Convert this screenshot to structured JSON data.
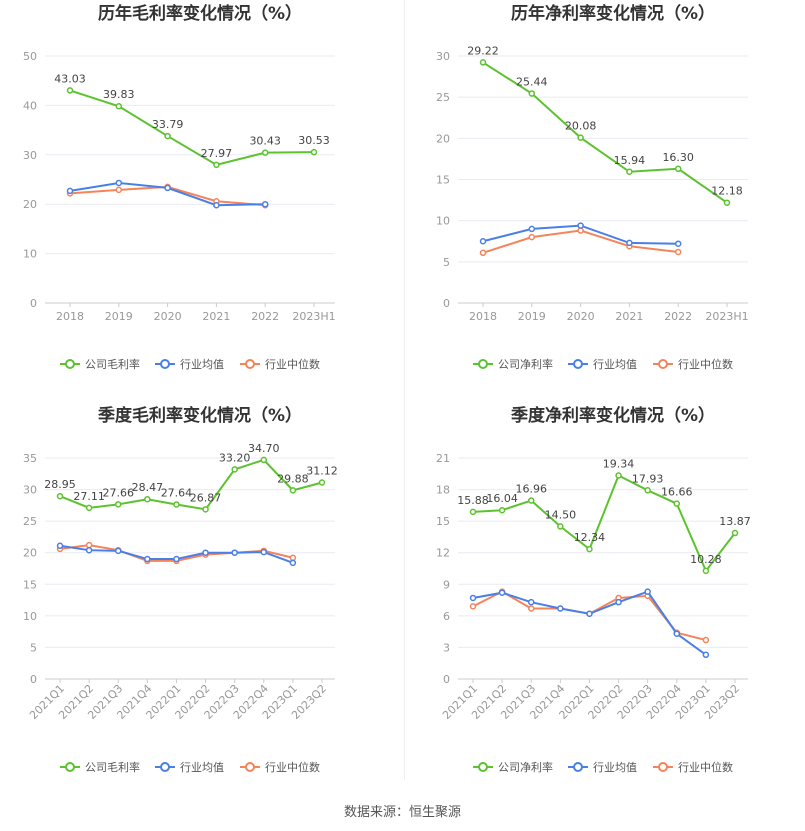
{
  "footer": "数据来源：恒生聚源",
  "colors": {
    "company": "#5cc22f",
    "avg": "#4a7fe8",
    "median": "#f5845a",
    "grid": "#e8ebf2",
    "axis": "#999999"
  },
  "chart_data": [
    {
      "type": "line",
      "title": "历年毛利率变化情况（%）",
      "categories": [
        "2018",
        "2019",
        "2020",
        "2021",
        "2022",
        "2023H1"
      ],
      "ylim": [
        0,
        50
      ],
      "yticks": [
        0,
        10,
        20,
        30,
        40,
        50
      ],
      "rotate": false,
      "series": [
        {
          "name": "公司毛利率",
          "key": "company",
          "values": [
            43.03,
            39.83,
            33.79,
            27.97,
            30.43,
            30.53
          ],
          "labels": true
        },
        {
          "name": "行业均值",
          "key": "avg",
          "values": [
            22.7,
            24.3,
            23.3,
            19.8,
            20.0,
            null
          ]
        },
        {
          "name": "行业中位数",
          "key": "median",
          "values": [
            22.2,
            22.9,
            23.5,
            20.6,
            19.8,
            null
          ]
        }
      ]
    },
    {
      "type": "line",
      "title": "历年净利率变化情况（%）",
      "categories": [
        "2018",
        "2019",
        "2020",
        "2021",
        "2022",
        "2023H1"
      ],
      "ylim": [
        0,
        30
      ],
      "yticks": [
        0,
        5,
        10,
        15,
        20,
        25,
        30
      ],
      "rotate": false,
      "series": [
        {
          "name": "公司净利率",
          "key": "company",
          "values": [
            29.22,
            25.44,
            20.08,
            15.94,
            16.3,
            12.18
          ],
          "labels": true
        },
        {
          "name": "行业均值",
          "key": "avg",
          "values": [
            7.5,
            9.0,
            9.4,
            7.3,
            7.2,
            null
          ]
        },
        {
          "name": "行业中位数",
          "key": "median",
          "values": [
            6.1,
            8.0,
            8.8,
            6.9,
            6.2,
            null
          ]
        }
      ]
    },
    {
      "type": "line",
      "title": "季度毛利率变化情况（%）",
      "categories": [
        "2021Q1",
        "2021Q2",
        "2021Q3",
        "2021Q4",
        "2022Q1",
        "2022Q2",
        "2022Q3",
        "2022Q4",
        "2023Q1",
        "2023Q2"
      ],
      "ylim": [
        0,
        35
      ],
      "yticks": [
        0,
        5,
        10,
        15,
        20,
        25,
        30,
        35
      ],
      "rotate": true,
      "series": [
        {
          "name": "公司毛利率",
          "key": "company",
          "values": [
            28.95,
            27.11,
            27.66,
            28.47,
            27.64,
            26.87,
            33.2,
            34.7,
            29.88,
            31.12
          ],
          "labels": true
        },
        {
          "name": "行业均值",
          "key": "avg",
          "values": [
            21.1,
            20.4,
            20.3,
            19.0,
            19.0,
            20.0,
            20.0,
            20.1,
            18.4,
            null
          ]
        },
        {
          "name": "行业中位数",
          "key": "median",
          "values": [
            20.6,
            21.2,
            20.4,
            18.7,
            18.7,
            19.7,
            20.0,
            20.3,
            19.2,
            null
          ]
        }
      ]
    },
    {
      "type": "line",
      "title": "季度净利率变化情况（%）",
      "categories": [
        "2021Q1",
        "2021Q2",
        "2021Q3",
        "2021Q4",
        "2022Q1",
        "2022Q2",
        "2022Q3",
        "2022Q4",
        "2023Q1",
        "2023Q2"
      ],
      "ylim": [
        0,
        21
      ],
      "yticks": [
        0,
        3,
        6,
        9,
        12,
        15,
        18,
        21
      ],
      "rotate": true,
      "series": [
        {
          "name": "公司净利率",
          "key": "company",
          "values": [
            15.88,
            16.04,
            16.96,
            14.5,
            12.34,
            19.34,
            17.93,
            16.66,
            10.28,
            13.87
          ],
          "labels": true
        },
        {
          "name": "行业均值",
          "key": "avg",
          "values": [
            7.7,
            8.2,
            7.3,
            6.7,
            6.2,
            7.3,
            8.3,
            4.3,
            2.3,
            null
          ]
        },
        {
          "name": "行业中位数",
          "key": "median",
          "values": [
            6.9,
            8.3,
            6.7,
            6.7,
            6.2,
            7.7,
            7.9,
            4.4,
            3.7,
            null
          ]
        }
      ]
    }
  ]
}
